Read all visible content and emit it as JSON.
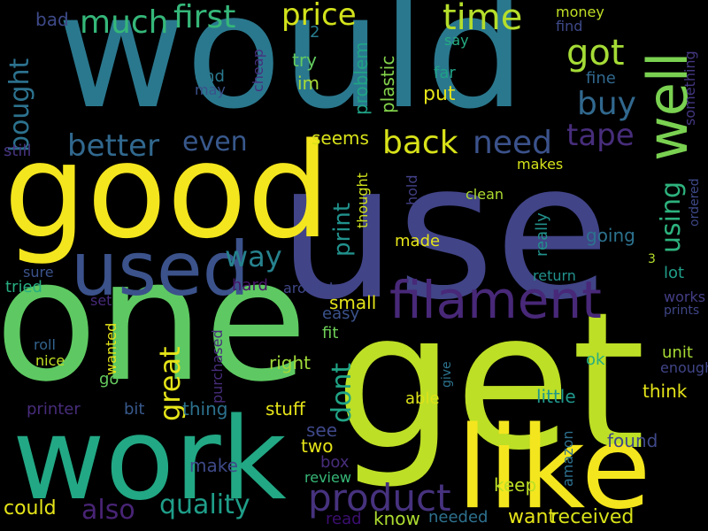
{
  "background": "#000000",
  "words": [
    {
      "text": "use",
      "color": "#414487"
    },
    {
      "text": "would",
      "color": "#2a788e"
    },
    {
      "text": "get",
      "color": "#bddf26"
    },
    {
      "text": "one",
      "color": "#5ec962"
    },
    {
      "text": "good",
      "color": "#f4e61e"
    },
    {
      "text": "work",
      "color": "#22a884"
    },
    {
      "text": "like",
      "color": "#f4e61e"
    },
    {
      "text": "used",
      "color": "#3b528b"
    },
    {
      "text": "filament",
      "color": "#482878"
    },
    {
      "text": "well",
      "color": "#7ad151"
    },
    {
      "text": "product",
      "color": "#46327e"
    },
    {
      "text": "time",
      "color": "#b5de2b"
    },
    {
      "text": "price",
      "color": "#d2e21b"
    },
    {
      "text": "much",
      "color": "#35b779"
    },
    {
      "text": "first",
      "color": "#35b779"
    },
    {
      "text": "got",
      "color": "#a5db36"
    },
    {
      "text": "buy",
      "color": "#31688e"
    },
    {
      "text": "need",
      "color": "#3b528b"
    },
    {
      "text": "back",
      "color": "#d8e219"
    },
    {
      "text": "tape",
      "color": "#472d7b"
    },
    {
      "text": "better",
      "color": "#31688e"
    },
    {
      "text": "even",
      "color": "#38588c"
    },
    {
      "text": "bought",
      "color": "#2c728e"
    },
    {
      "text": "print",
      "color": "#21918c"
    },
    {
      "text": "way",
      "color": "#26828e"
    },
    {
      "text": "great",
      "color": "#e5e419"
    },
    {
      "text": "dont",
      "color": "#20a486"
    },
    {
      "text": "quality",
      "color": "#1f9e89"
    },
    {
      "text": "also",
      "color": "#482475"
    },
    {
      "text": "using",
      "color": "#2db27d"
    },
    {
      "text": "seems",
      "color": "#d8e219"
    },
    {
      "text": "put",
      "color": "#e5e419"
    },
    {
      "text": "problem",
      "color": "#20a386"
    },
    {
      "text": "plastic",
      "color": "#84d44b"
    },
    {
      "text": "bad",
      "color": "#3e4a89"
    },
    {
      "text": "2",
      "color": "#287c8e"
    },
    {
      "text": "try",
      "color": "#63cb5f"
    },
    {
      "text": "im",
      "color": "#a8db34"
    },
    {
      "text": "end",
      "color": "#2a788e"
    },
    {
      "text": "may",
      "color": "#3b528b"
    },
    {
      "text": "cheap",
      "color": "#46307e"
    },
    {
      "text": "far",
      "color": "#1fa187"
    },
    {
      "text": "money",
      "color": "#c0df25"
    },
    {
      "text": "find",
      "color": "#3e4989"
    },
    {
      "text": "say",
      "color": "#25ac82"
    },
    {
      "text": "fine",
      "color": "#31688e"
    },
    {
      "text": "something",
      "color": "#453781"
    },
    {
      "text": "still",
      "color": "#46337f"
    },
    {
      "text": "makes",
      "color": "#d5e21a"
    },
    {
      "text": "ordered",
      "color": "#3e4989"
    },
    {
      "text": "clean",
      "color": "#addc30"
    },
    {
      "text": "thought",
      "color": "#d0e11c"
    },
    {
      "text": "hold",
      "color": "#424086"
    },
    {
      "text": "really",
      "color": "#21918c"
    },
    {
      "text": "going",
      "color": "#2c728e"
    },
    {
      "text": "made",
      "color": "#e5e419"
    },
    {
      "text": "3",
      "color": "#b5de2b"
    },
    {
      "text": "lot",
      "color": "#1f9e89"
    },
    {
      "text": "sure",
      "color": "#3b528b"
    },
    {
      "text": "tried",
      "color": "#27ad81"
    },
    {
      "text": "hard",
      "color": "#481668"
    },
    {
      "text": "around",
      "color": "#3f4788"
    },
    {
      "text": "small",
      "color": "#e5e419"
    },
    {
      "text": "return",
      "color": "#21918c"
    },
    {
      "text": "works",
      "color": "#433e85"
    },
    {
      "text": "set",
      "color": "#472a7a"
    },
    {
      "text": "easy",
      "color": "#3b528b"
    },
    {
      "text": "prints",
      "color": "#3f4788"
    },
    {
      "text": "purchased",
      "color": "#472d7b"
    },
    {
      "text": "fit",
      "color": "#6ece58"
    },
    {
      "text": "roll",
      "color": "#32648e"
    },
    {
      "text": "nice",
      "color": "#c2df23"
    },
    {
      "text": "wanted",
      "color": "#e5e419"
    },
    {
      "text": "right",
      "color": "#a0da39"
    },
    {
      "text": "unit",
      "color": "#a8db34"
    },
    {
      "text": "enough",
      "color": "#404588"
    },
    {
      "text": "go",
      "color": "#65cb5e"
    },
    {
      "text": "give",
      "color": "#2c738e"
    },
    {
      "text": "ok",
      "color": "#26ad81"
    },
    {
      "text": "able",
      "color": "#dde318"
    },
    {
      "text": "little",
      "color": "#1f988b"
    },
    {
      "text": "think",
      "color": "#e5e419"
    },
    {
      "text": "printer",
      "color": "#472c7a"
    },
    {
      "text": "bit",
      "color": "#38598c"
    },
    {
      "text": "thing",
      "color": "#2c728e"
    },
    {
      "text": "stuff",
      "color": "#e5e419"
    },
    {
      "text": "amazon",
      "color": "#2d708e"
    },
    {
      "text": "see",
      "color": "#3f4889"
    },
    {
      "text": "two",
      "color": "#e5e419"
    },
    {
      "text": "found",
      "color": "#3f4889"
    },
    {
      "text": "make",
      "color": "#3e4a89"
    },
    {
      "text": "box",
      "color": "#472d7b"
    },
    {
      "text": "review",
      "color": "#37b878"
    },
    {
      "text": "keep",
      "color": "#bddf26"
    },
    {
      "text": "could",
      "color": "#e5e419"
    },
    {
      "text": "read",
      "color": "#3b0f70"
    },
    {
      "text": "know",
      "color": "#addc30"
    },
    {
      "text": "needed",
      "color": "#2d718e"
    },
    {
      "text": "want",
      "color": "#e5e419"
    },
    {
      "text": "received",
      "color": "#d8e219"
    }
  ]
}
